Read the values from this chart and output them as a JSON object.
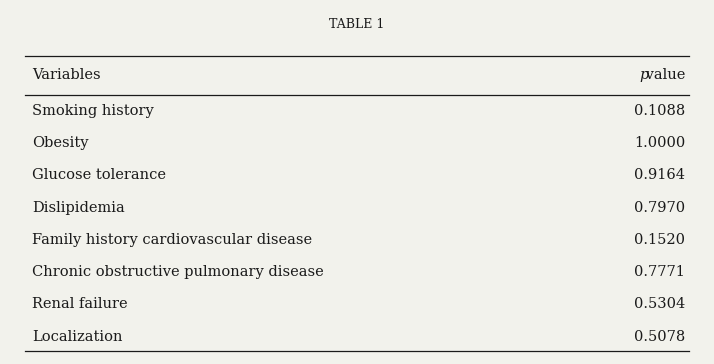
{
  "title": "TABLE 1",
  "col1_header": "Variables",
  "col2_header_italic": "p",
  "col2_header_normal": " value",
  "rows": [
    [
      "Smoking history",
      "0.1088"
    ],
    [
      "Obesity",
      "1.0000"
    ],
    [
      "Glucose tolerance",
      "0.9164"
    ],
    [
      "Dislipidemia",
      "0.7970"
    ],
    [
      "Family history cardiovascular disease",
      "0.1520"
    ],
    [
      "Chronic obstructive pulmonary disease",
      "0.7771"
    ],
    [
      "Renal failure",
      "0.5304"
    ],
    [
      "Localization",
      "0.5078"
    ]
  ],
  "bg_color": "#f2f2ec",
  "text_color": "#1a1a1a",
  "title_fontsize": 9,
  "header_fontsize": 10.5,
  "row_fontsize": 10.5,
  "fig_width": 7.14,
  "fig_height": 3.64
}
